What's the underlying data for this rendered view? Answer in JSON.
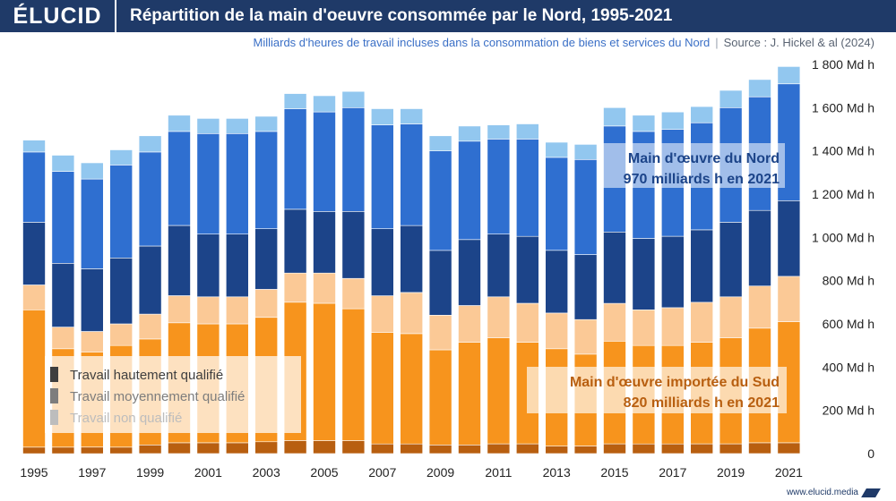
{
  "header": {
    "logo": "ÉLUCID",
    "title": "Répartition de la main d'oeuvre consommée par le Nord, 1995-2021",
    "subtitle": "Milliards d'heures de travail incluses dans la consommation de biens et services du Nord",
    "separator": "|",
    "source": "Source : J. Hickel & al (2024)"
  },
  "footer": {
    "url": "www.elucid.media"
  },
  "colors": {
    "south_high": "#b85f10",
    "south_mid": "#f7941d",
    "south_low": "#fbc996",
    "north_high": "#1c4489",
    "north_mid": "#2f6fd0",
    "north_low": "#92c7ef",
    "annotation_north": "#1c4489",
    "annotation_south": "#b85f10"
  },
  "chart_data": {
    "type": "bar",
    "stacked": true,
    "x": [
      1995,
      1996,
      1997,
      1998,
      1999,
      2000,
      2001,
      2002,
      2003,
      2004,
      2005,
      2006,
      2007,
      2008,
      2009,
      2010,
      2011,
      2012,
      2013,
      2014,
      2015,
      2016,
      2017,
      2018,
      2019,
      2020,
      2021
    ],
    "x_tick_labels": [
      "1995",
      "1997",
      "1999",
      "2001",
      "2003",
      "2005",
      "2007",
      "2009",
      "2011",
      "2013",
      "2015",
      "2017",
      "2019",
      "2021"
    ],
    "y_ticks": [
      0,
      200,
      400,
      600,
      800,
      1000,
      1200,
      1400,
      1600,
      1800
    ],
    "y_tick_labels": [
      "0",
      "200 Md h",
      "400 Md h",
      "600 Md h",
      "800 Md h",
      "1 000 Md h",
      "1 200 Md h",
      "1 400 Md h",
      "1 600 Md h",
      "1 800 Md h"
    ],
    "ylim": [
      0,
      1800
    ],
    "y_axis_position": "right",
    "series": [
      {
        "group": "south",
        "skill": "high",
        "values": [
          30,
          30,
          30,
          30,
          40,
          50,
          50,
          50,
          55,
          60,
          60,
          60,
          45,
          45,
          40,
          40,
          45,
          45,
          35,
          35,
          45,
          45,
          45,
          45,
          45,
          50,
          50
        ]
      },
      {
        "group": "south",
        "skill": "mid",
        "values": [
          635,
          455,
          440,
          470,
          490,
          555,
          550,
          550,
          575,
          640,
          635,
          610,
          515,
          510,
          440,
          475,
          490,
          470,
          450,
          425,
          475,
          455,
          455,
          470,
          490,
          530,
          560
        ]
      },
      {
        "group": "south",
        "skill": "low",
        "values": [
          115,
          100,
          95,
          100,
          115,
          125,
          125,
          125,
          130,
          135,
          140,
          140,
          170,
          190,
          160,
          170,
          190,
          180,
          165,
          160,
          175,
          165,
          175,
          185,
          190,
          195,
          210
        ]
      },
      {
        "group": "north",
        "skill": "high",
        "values": [
          290,
          295,
          290,
          305,
          315,
          325,
          290,
          290,
          280,
          295,
          285,
          310,
          310,
          310,
          300,
          305,
          290,
          310,
          290,
          300,
          330,
          330,
          330,
          335,
          345,
          350,
          350
        ]
      },
      {
        "group": "north",
        "skill": "mid",
        "values": [
          325,
          425,
          415,
          430,
          435,
          435,
          465,
          465,
          450,
          465,
          460,
          480,
          480,
          470,
          460,
          455,
          440,
          450,
          430,
          440,
          490,
          495,
          495,
          495,
          530,
          525,
          540
        ]
      },
      {
        "group": "north",
        "skill": "low",
        "values": [
          55,
          75,
          75,
          70,
          75,
          75,
          70,
          70,
          70,
          70,
          75,
          75,
          75,
          70,
          70,
          70,
          65,
          70,
          70,
          70,
          85,
          75,
          80,
          75,
          80,
          80,
          80
        ]
      }
    ],
    "annotations": [
      {
        "group": "north",
        "line1": "Main d'œuvre du Nord",
        "line2": "970 milliards h en 2021"
      },
      {
        "group": "south",
        "line1": "Main d'œuvre importée du Sud",
        "line2": "820 milliards h en 2021"
      }
    ],
    "legend": {
      "placement": "bottom-left",
      "items": [
        {
          "label": "Travail hautement qualifié",
          "color": "#3f3f3f"
        },
        {
          "label": "Travail moyennement qualifié",
          "color": "#7d7d7d"
        },
        {
          "label": "Travail non qualifié",
          "color": "#bdbdbd"
        }
      ]
    },
    "grid": false
  }
}
